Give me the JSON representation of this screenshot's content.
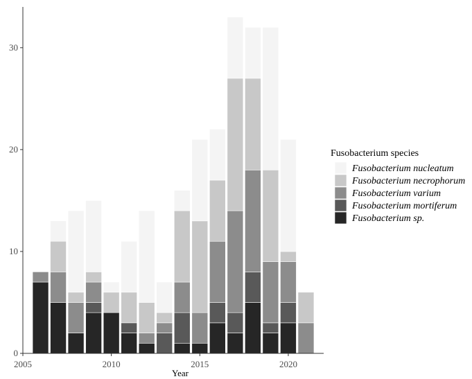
{
  "chart_data": {
    "type": "bar",
    "stacked": true,
    "title": "",
    "xlabel": "Year",
    "ylabel": "",
    "xlim": [
      2005,
      2022
    ],
    "ylim": [
      0,
      34
    ],
    "x_ticks": [
      2005,
      2010,
      2015,
      2020
    ],
    "y_ticks": [
      0,
      10,
      20,
      30
    ],
    "grid": false,
    "legend": {
      "title": "Fusobacterium species",
      "position": "right"
    },
    "categories": [
      2006,
      2007,
      2008,
      2009,
      2010,
      2011,
      2012,
      2013,
      2014,
      2015,
      2016,
      2017,
      2018,
      2019,
      2020,
      2021
    ],
    "series": [
      {
        "name": "Fusobacterium sp.",
        "color": "#262626",
        "values": [
          7,
          5,
          2,
          4,
          4,
          2,
          1,
          0,
          1,
          1,
          3,
          2,
          5,
          2,
          3,
          0
        ]
      },
      {
        "name": "Fusobacterium mortiferum",
        "color": "#595959",
        "values": [
          0,
          0,
          0,
          1,
          0,
          1,
          0,
          2,
          3,
          0,
          2,
          2,
          3,
          1,
          2,
          0
        ]
      },
      {
        "name": "Fusobacterium varium",
        "color": "#8c8c8c",
        "values": [
          1,
          3,
          3,
          2,
          0,
          0,
          1,
          1,
          3,
          3,
          6,
          10,
          10,
          6,
          4,
          3
        ]
      },
      {
        "name": "Fusobacterium necrophorum",
        "color": "#c8c8c8",
        "values": [
          0,
          3,
          1,
          1,
          2,
          3,
          3,
          1,
          7,
          9,
          6,
          13,
          9,
          9,
          1,
          3
        ]
      },
      {
        "name": "Fusobacterium nucleatum",
        "color": "#f4f4f4",
        "values": [
          0,
          2,
          8,
          7,
          1,
          5,
          9,
          3,
          2,
          8,
          5,
          6,
          5,
          14,
          11,
          0
        ]
      }
    ],
    "legend_order": [
      "Fusobacterium nucleatum",
      "Fusobacterium necrophorum",
      "Fusobacterium varium",
      "Fusobacterium mortiferum",
      "Fusobacterium sp."
    ]
  }
}
